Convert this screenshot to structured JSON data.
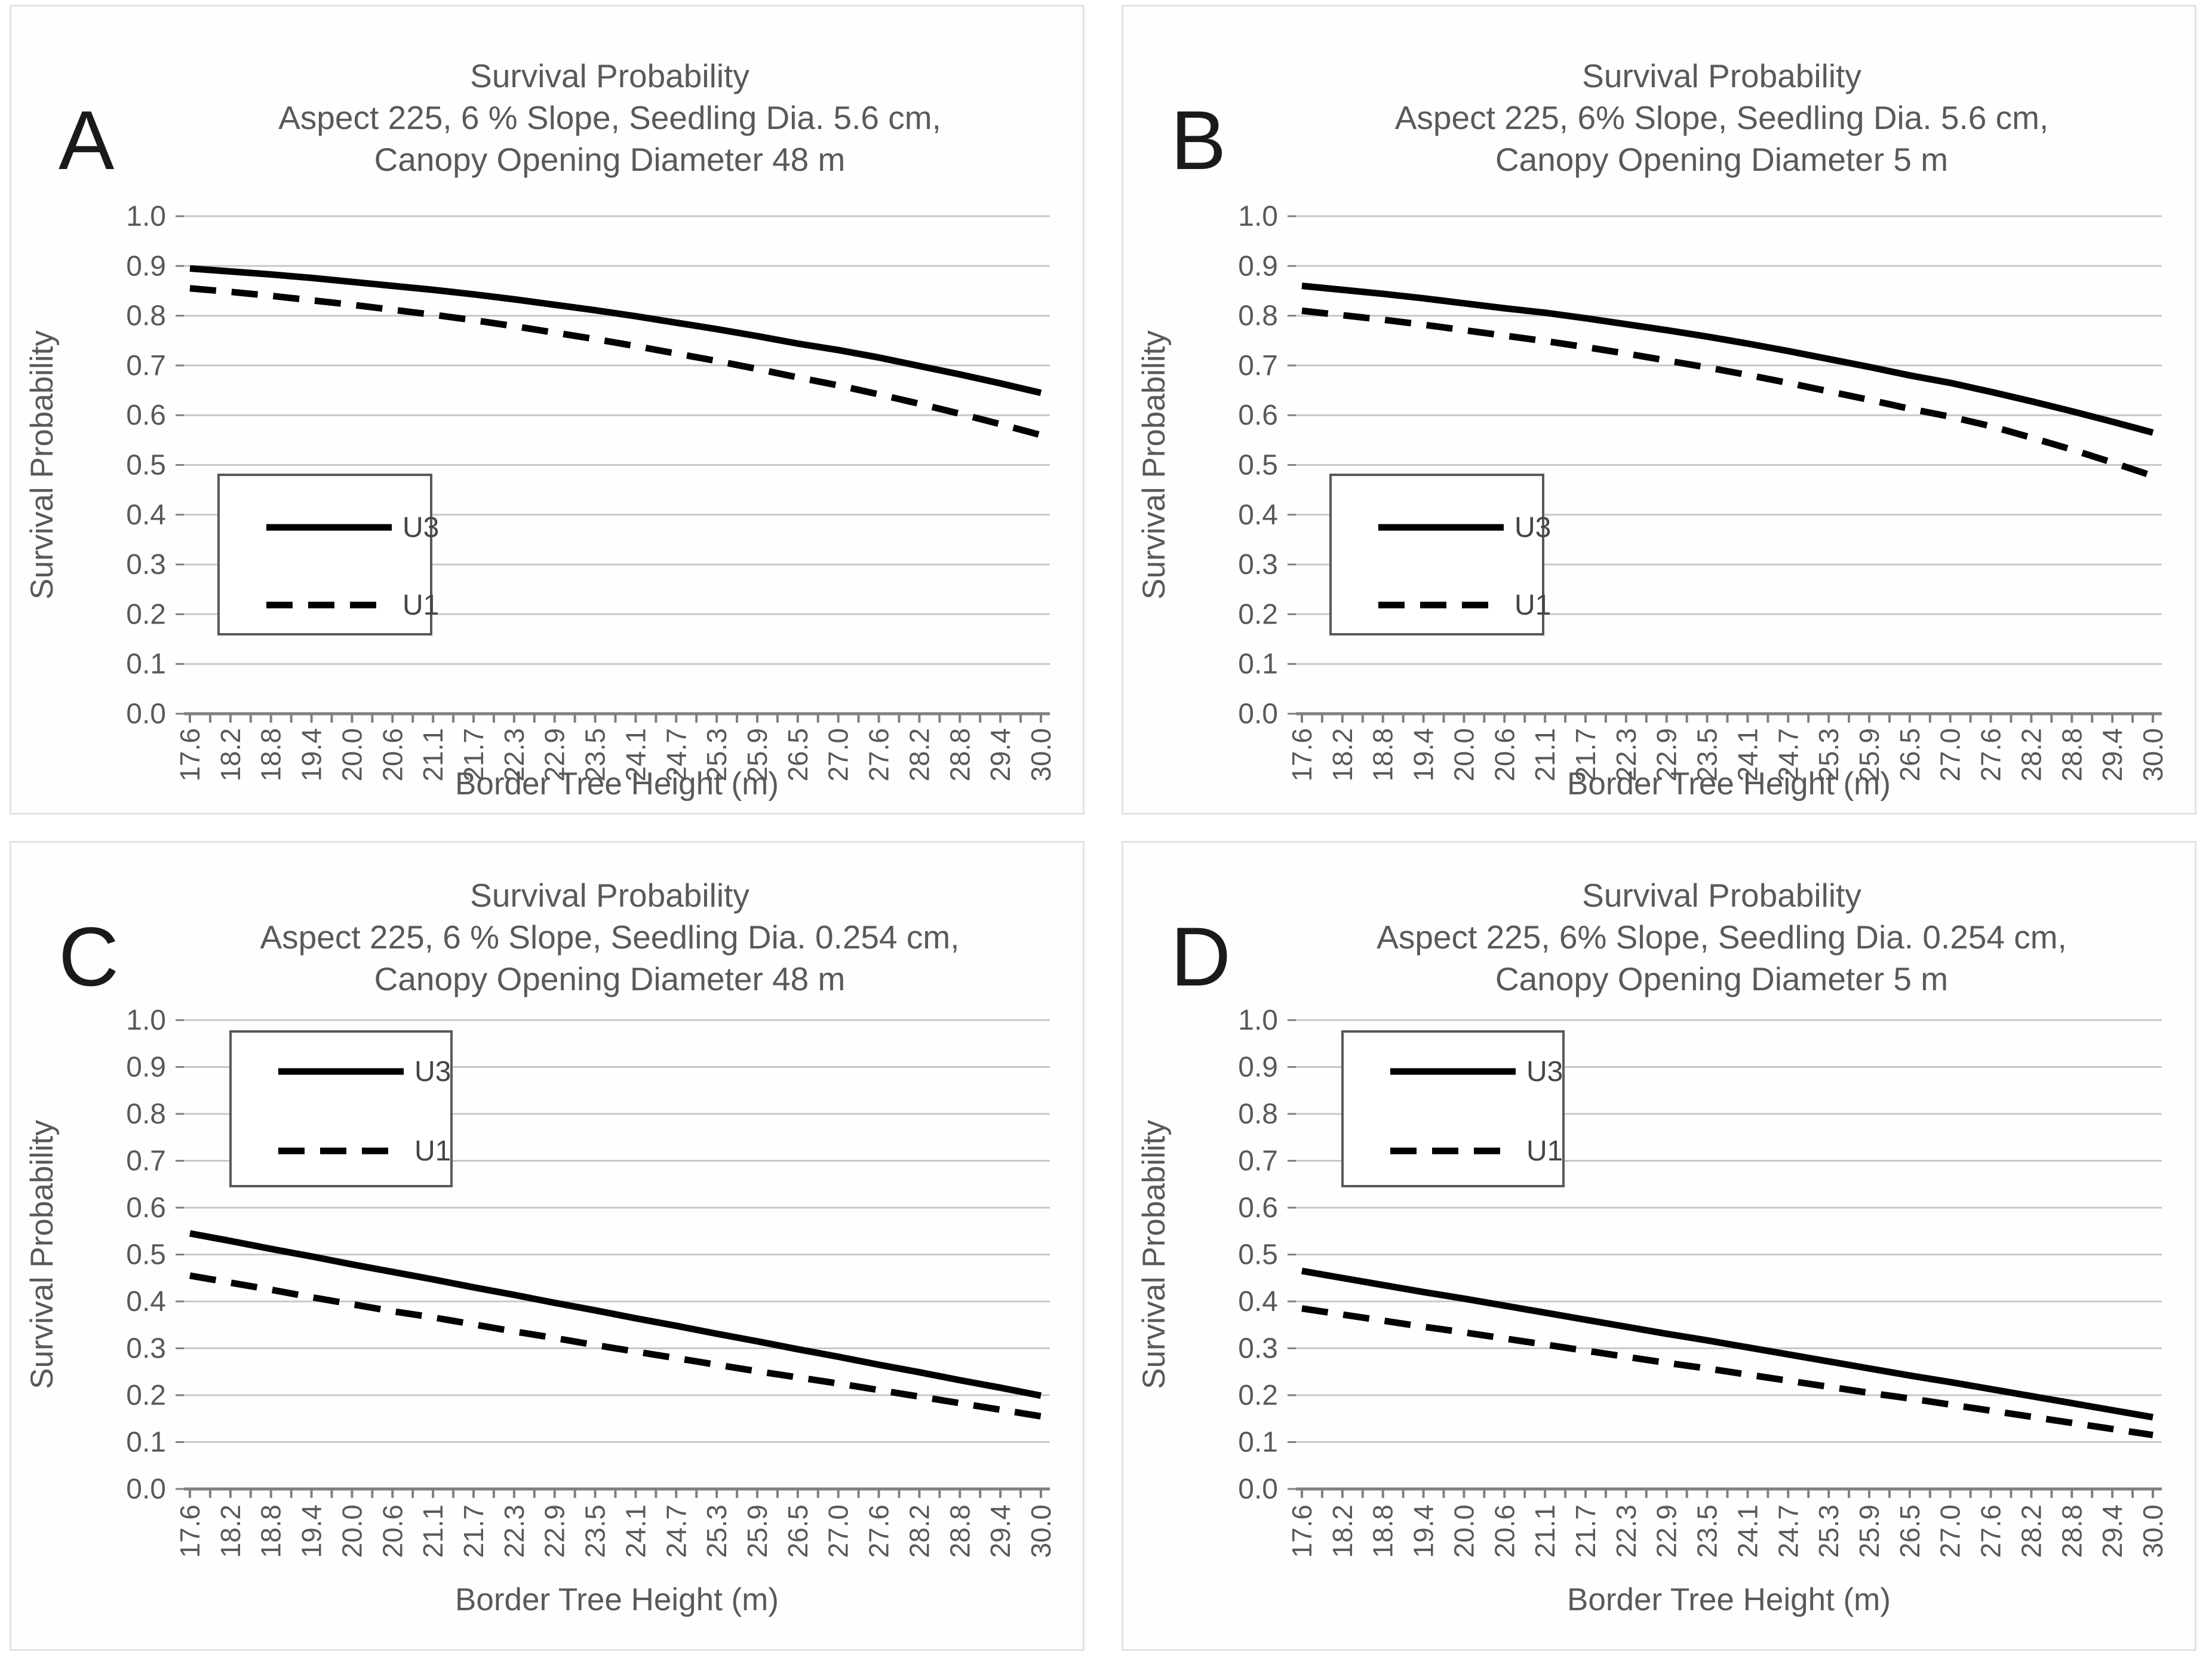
{
  "page": {
    "background": "#ffffff"
  },
  "colors": {
    "panel_background": "#fefefe",
    "panel_border": "#e2e2e2",
    "grid_line": "#c8c8c8",
    "axis_line": "#7f7f7f",
    "text": "#595959",
    "panel_letter": "#1a1a1a",
    "series_line": "#000000",
    "legend_border": "#595959",
    "legend_fill": "#ffffff"
  },
  "legend": {
    "items": [
      {
        "label": "U3",
        "style": "solid"
      },
      {
        "label": "U1",
        "style": "dashed"
      }
    ]
  },
  "chart_data": [
    {
      "type": "line",
      "panel_label": "A",
      "title_lines": [
        "Survival Probability",
        "Aspect 225, 6 % Slope, Seedling Dia. 5.6 cm,",
        "Canopy Opening Diameter 48 m"
      ],
      "xlabel": "Border Tree Height (m)",
      "ylabel": "Survival Probability",
      "x_categories": [
        "17.6",
        "18.2",
        "18.8",
        "19.4",
        "20.0",
        "20.6",
        "21.1",
        "21.7",
        "22.3",
        "22.9",
        "23.5",
        "24.1",
        "24.7",
        "25.3",
        "25.9",
        "26.5",
        "27.0",
        "27.6",
        "28.2",
        "28.8",
        "29.4",
        "30.0"
      ],
      "y_ticks": [
        "0.0",
        "0.1",
        "0.2",
        "0.3",
        "0.4",
        "0.5",
        "0.6",
        "0.7",
        "0.8",
        "0.9",
        "1.0"
      ],
      "ylim": [
        0.0,
        1.0
      ],
      "grid": true,
      "legend_position": "middle-left",
      "series": [
        {
          "name": "U3",
          "style": "solid",
          "values": [
            0.895,
            0.889,
            0.883,
            0.876,
            0.868,
            0.86,
            0.852,
            0.843,
            0.833,
            0.822,
            0.811,
            0.799,
            0.786,
            0.773,
            0.759,
            0.744,
            0.731,
            0.716,
            0.699,
            0.682,
            0.664,
            0.645
          ]
        },
        {
          "name": "U1",
          "style": "dashed",
          "values": [
            0.855,
            0.848,
            0.84,
            0.831,
            0.822,
            0.812,
            0.802,
            0.791,
            0.779,
            0.766,
            0.753,
            0.739,
            0.724,
            0.709,
            0.693,
            0.676,
            0.66,
            0.642,
            0.623,
            0.603,
            0.582,
            0.56
          ]
        }
      ]
    },
    {
      "type": "line",
      "panel_label": "B",
      "title_lines": [
        "Survival Probability",
        "Aspect 225, 6% Slope, Seedling Dia. 5.6 cm,",
        "Canopy Opening Diameter 5 m"
      ],
      "xlabel": "Border Tree Height (m)",
      "ylabel": "Survival Probability",
      "x_categories": [
        "17.6",
        "18.2",
        "18.8",
        "19.4",
        "20.0",
        "20.6",
        "21.1",
        "21.7",
        "22.3",
        "22.9",
        "23.5",
        "24.1",
        "24.7",
        "25.3",
        "25.9",
        "26.5",
        "27.0",
        "27.6",
        "28.2",
        "28.8",
        "29.4",
        "30.0"
      ],
      "y_ticks": [
        "0.0",
        "0.1",
        "0.2",
        "0.3",
        "0.4",
        "0.5",
        "0.6",
        "0.7",
        "0.8",
        "0.9",
        "1.0"
      ],
      "ylim": [
        0.0,
        1.0
      ],
      "grid": true,
      "legend_position": "middle-left",
      "series": [
        {
          "name": "U3",
          "style": "solid",
          "values": [
            0.86,
            0.852,
            0.844,
            0.835,
            0.825,
            0.815,
            0.806,
            0.795,
            0.783,
            0.771,
            0.758,
            0.744,
            0.729,
            0.713,
            0.697,
            0.68,
            0.665,
            0.647,
            0.628,
            0.608,
            0.587,
            0.565
          ]
        },
        {
          "name": "U1",
          "style": "dashed",
          "values": [
            0.81,
            0.801,
            0.792,
            0.782,
            0.771,
            0.76,
            0.749,
            0.737,
            0.724,
            0.71,
            0.696,
            0.681,
            0.665,
            0.648,
            0.631,
            0.613,
            0.597,
            0.578,
            0.555,
            0.531,
            0.505,
            0.478
          ]
        }
      ]
    },
    {
      "type": "line",
      "panel_label": "C",
      "title_lines": [
        "Survival Probability",
        "Aspect 225, 6 % Slope, Seedling Dia. 0.254 cm,",
        "Canopy Opening Diameter 48 m"
      ],
      "xlabel": "Border Tree Height (m)",
      "ylabel": "Survival Probability",
      "x_categories": [
        "17.6",
        "18.2",
        "18.8",
        "19.4",
        "20.0",
        "20.6",
        "21.1",
        "21.7",
        "22.3",
        "22.9",
        "23.5",
        "24.1",
        "24.7",
        "25.3",
        "25.9",
        "26.5",
        "27.0",
        "27.6",
        "28.2",
        "28.8",
        "29.4",
        "30.0"
      ],
      "y_ticks": [
        "0.0",
        "0.1",
        "0.2",
        "0.3",
        "0.4",
        "0.5",
        "0.6",
        "0.7",
        "0.8",
        "0.9",
        "1.0"
      ],
      "ylim": [
        0.0,
        1.0
      ],
      "grid": true,
      "legend_position": "top-left",
      "series": [
        {
          "name": "U3",
          "style": "solid",
          "values": [
            0.545,
            0.529,
            0.512,
            0.496,
            0.479,
            0.463,
            0.447,
            0.43,
            0.414,
            0.397,
            0.381,
            0.364,
            0.348,
            0.331,
            0.315,
            0.298,
            0.282,
            0.265,
            0.249,
            0.232,
            0.216,
            0.199
          ]
        },
        {
          "name": "U1",
          "style": "dashed",
          "values": [
            0.455,
            0.44,
            0.425,
            0.409,
            0.394,
            0.379,
            0.366,
            0.351,
            0.336,
            0.322,
            0.307,
            0.293,
            0.279,
            0.265,
            0.251,
            0.238,
            0.225,
            0.211,
            0.197,
            0.183,
            0.169,
            0.155
          ]
        }
      ]
    },
    {
      "type": "line",
      "panel_label": "D",
      "title_lines": [
        "Survival Probability",
        "Aspect 225, 6% Slope, Seedling Dia. 0.254 cm,",
        "Canopy Opening Diameter 5 m"
      ],
      "xlabel": "Border Tree Height (m)",
      "ylabel": "Survival Probability",
      "x_categories": [
        "17.6",
        "18.2",
        "18.8",
        "19.4",
        "20.0",
        "20.6",
        "21.1",
        "21.7",
        "22.3",
        "22.9",
        "23.5",
        "24.1",
        "24.7",
        "25.3",
        "25.9",
        "26.5",
        "27.0",
        "27.6",
        "28.2",
        "28.8",
        "29.4",
        "30.0"
      ],
      "y_ticks": [
        "0.0",
        "0.1",
        "0.2",
        "0.3",
        "0.4",
        "0.5",
        "0.6",
        "0.7",
        "0.8",
        "0.9",
        "1.0"
      ],
      "ylim": [
        0.0,
        1.0
      ],
      "grid": true,
      "legend_position": "top-left",
      "series": [
        {
          "name": "U3",
          "style": "solid",
          "values": [
            0.465,
            0.45,
            0.435,
            0.42,
            0.406,
            0.391,
            0.376,
            0.361,
            0.346,
            0.331,
            0.317,
            0.302,
            0.287,
            0.272,
            0.257,
            0.242,
            0.228,
            0.213,
            0.198,
            0.183,
            0.168,
            0.153
          ]
        },
        {
          "name": "U1",
          "style": "dashed",
          "values": [
            0.385,
            0.372,
            0.359,
            0.346,
            0.334,
            0.321,
            0.308,
            0.295,
            0.282,
            0.269,
            0.257,
            0.244,
            0.231,
            0.218,
            0.205,
            0.193,
            0.18,
            0.167,
            0.154,
            0.141,
            0.128,
            0.115
          ]
        }
      ]
    }
  ]
}
